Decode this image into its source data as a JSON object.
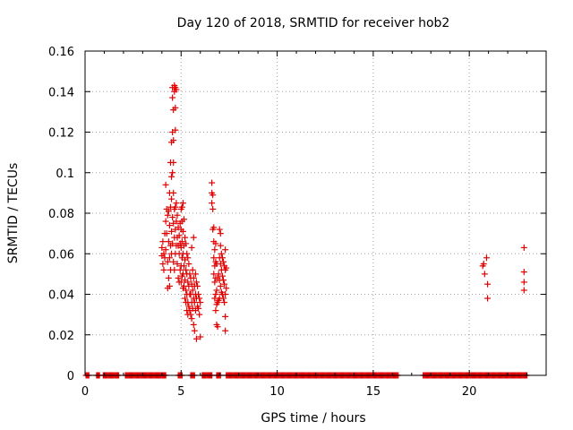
{
  "chart_data": {
    "type": "scatter",
    "title": "Day 120 of 2018, SRMTID for receiver hob2",
    "xlabel": "GPS time / hours",
    "ylabel": "SRMTID / TECUs",
    "xlim": [
      0,
      24
    ],
    "ylim": [
      0,
      0.16
    ],
    "xticks": [
      0,
      5,
      10,
      15,
      20
    ],
    "xtick_labels": [
      "0",
      "5",
      "10",
      "15",
      "20"
    ],
    "yticks": [
      0,
      0.02,
      0.04,
      0.06,
      0.08,
      0.1,
      0.12,
      0.14,
      0.16
    ],
    "ytick_labels": [
      "0",
      "0.02",
      "0.04",
      "0.06",
      "0.08",
      "0.1",
      "0.12",
      "0.14",
      "0.16"
    ],
    "grid": true,
    "marker": "+",
    "color": "#e00000",
    "series": [
      {
        "name": "SRMTID",
        "points": [
          [
            4.0,
            0.059
          ],
          [
            4.0,
            0.063
          ],
          [
            4.05,
            0.055
          ],
          [
            4.05,
            0.066
          ],
          [
            4.1,
            0.06
          ],
          [
            4.1,
            0.052
          ],
          [
            4.15,
            0.07
          ],
          [
            4.15,
            0.058
          ],
          [
            4.2,
            0.094
          ],
          [
            4.2,
            0.076
          ],
          [
            4.2,
            0.062
          ],
          [
            4.25,
            0.082
          ],
          [
            4.25,
            0.07
          ],
          [
            4.3,
            0.079
          ],
          [
            4.3,
            0.043
          ],
          [
            4.3,
            0.056
          ],
          [
            4.35,
            0.081
          ],
          [
            4.35,
            0.066
          ],
          [
            4.35,
            0.048
          ],
          [
            4.4,
            0.09
          ],
          [
            4.4,
            0.074
          ],
          [
            4.4,
            0.058
          ],
          [
            4.4,
            0.044
          ],
          [
            4.45,
            0.105
          ],
          [
            4.45,
            0.083
          ],
          [
            4.45,
            0.064
          ],
          [
            4.45,
            0.052
          ],
          [
            4.5,
            0.115
          ],
          [
            4.5,
            0.098
          ],
          [
            4.5,
            0.087
          ],
          [
            4.5,
            0.071
          ],
          [
            4.5,
            0.06
          ],
          [
            4.55,
            0.142
          ],
          [
            4.55,
            0.137
          ],
          [
            4.55,
            0.12
          ],
          [
            4.55,
            0.1
          ],
          [
            4.55,
            0.078
          ],
          [
            4.55,
            0.065
          ],
          [
            4.6,
            0.131
          ],
          [
            4.6,
            0.116
          ],
          [
            4.6,
            0.105
          ],
          [
            4.6,
            0.09
          ],
          [
            4.6,
            0.075
          ],
          [
            4.6,
            0.056
          ],
          [
            4.65,
            0.143
          ],
          [
            4.65,
            0.14
          ],
          [
            4.65,
            0.082
          ],
          [
            4.65,
            0.068
          ],
          [
            4.65,
            0.052
          ],
          [
            4.7,
            0.142
          ],
          [
            4.7,
            0.132
          ],
          [
            4.7,
            0.121
          ],
          [
            4.7,
            0.083
          ],
          [
            4.7,
            0.072
          ],
          [
            4.7,
            0.06
          ],
          [
            4.75,
            0.141
          ],
          [
            4.75,
            0.085
          ],
          [
            4.75,
            0.076
          ],
          [
            4.75,
            0.064
          ],
          [
            4.8,
            0.079
          ],
          [
            4.8,
            0.068
          ],
          [
            4.8,
            0.055
          ],
          [
            4.85,
            0.073
          ],
          [
            4.85,
            0.064
          ],
          [
            4.85,
            0.048
          ],
          [
            4.9,
            0.069
          ],
          [
            4.9,
            0.06
          ],
          [
            4.9,
            0.046
          ],
          [
            4.95,
            0.075
          ],
          [
            4.95,
            0.065
          ],
          [
            4.95,
            0.052
          ],
          [
            5.0,
            0.082
          ],
          [
            5.0,
            0.072
          ],
          [
            5.0,
            0.063
          ],
          [
            5.0,
            0.054
          ],
          [
            5.0,
            0.046
          ],
          [
            5.05,
            0.083
          ],
          [
            5.05,
            0.076
          ],
          [
            5.05,
            0.066
          ],
          [
            5.05,
            0.058
          ],
          [
            5.05,
            0.049
          ],
          [
            5.1,
            0.085
          ],
          [
            5.1,
            0.071
          ],
          [
            5.1,
            0.06
          ],
          [
            5.1,
            0.05
          ],
          [
            5.1,
            0.043
          ],
          [
            5.15,
            0.077
          ],
          [
            5.15,
            0.064
          ],
          [
            5.15,
            0.054
          ],
          [
            5.15,
            0.044
          ],
          [
            5.2,
            0.068
          ],
          [
            5.2,
            0.057
          ],
          [
            5.2,
            0.047
          ],
          [
            5.2,
            0.038
          ],
          [
            5.25,
            0.065
          ],
          [
            5.25,
            0.052
          ],
          [
            5.25,
            0.042
          ],
          [
            5.25,
            0.036
          ],
          [
            5.3,
            0.06
          ],
          [
            5.3,
            0.05
          ],
          [
            5.3,
            0.04
          ],
          [
            5.3,
            0.032
          ],
          [
            5.35,
            0.058
          ],
          [
            5.35,
            0.046
          ],
          [
            5.35,
            0.036
          ],
          [
            5.35,
            0.03
          ],
          [
            5.4,
            0.055
          ],
          [
            5.4,
            0.044
          ],
          [
            5.4,
            0.034
          ],
          [
            5.45,
            0.05
          ],
          [
            5.45,
            0.04
          ],
          [
            5.45,
            0.032
          ],
          [
            5.5,
            0.048
          ],
          [
            5.5,
            0.04
          ],
          [
            5.5,
            0.03
          ],
          [
            5.55,
            0.063
          ],
          [
            5.55,
            0.045
          ],
          [
            5.55,
            0.036
          ],
          [
            5.55,
            0.028
          ],
          [
            5.6,
            0.052
          ],
          [
            5.6,
            0.042
          ],
          [
            5.6,
            0.033
          ],
          [
            5.65,
            0.068
          ],
          [
            5.65,
            0.048
          ],
          [
            5.65,
            0.038
          ],
          [
            5.65,
            0.025
          ],
          [
            5.7,
            0.044
          ],
          [
            5.7,
            0.036
          ],
          [
            5.7,
            0.022
          ],
          [
            5.75,
            0.05
          ],
          [
            5.75,
            0.04
          ],
          [
            5.75,
            0.032
          ],
          [
            5.8,
            0.046
          ],
          [
            5.8,
            0.038
          ],
          [
            5.8,
            0.018
          ],
          [
            5.85,
            0.044
          ],
          [
            5.85,
            0.034
          ],
          [
            5.9,
            0.04
          ],
          [
            5.9,
            0.033
          ],
          [
            5.95,
            0.038
          ],
          [
            5.95,
            0.03
          ],
          [
            6.0,
            0.036
          ],
          [
            6.0,
            0.019
          ],
          [
            6.6,
            0.095
          ],
          [
            6.6,
            0.09
          ],
          [
            6.6,
            0.085
          ],
          [
            6.65,
            0.089
          ],
          [
            6.65,
            0.082
          ],
          [
            6.65,
            0.072
          ],
          [
            6.7,
            0.073
          ],
          [
            6.7,
            0.066
          ],
          [
            6.7,
            0.058
          ],
          [
            6.7,
            0.05
          ],
          [
            6.75,
            0.062
          ],
          [
            6.75,
            0.054
          ],
          [
            6.75,
            0.046
          ],
          [
            6.75,
            0.038
          ],
          [
            6.8,
            0.065
          ],
          [
            6.8,
            0.056
          ],
          [
            6.8,
            0.048
          ],
          [
            6.8,
            0.04
          ],
          [
            6.8,
            0.032
          ],
          [
            6.85,
            0.055
          ],
          [
            6.85,
            0.042
          ],
          [
            6.85,
            0.035
          ],
          [
            6.85,
            0.025
          ],
          [
            6.9,
            0.048
          ],
          [
            6.9,
            0.036
          ],
          [
            6.9,
            0.024
          ],
          [
            6.95,
            0.05
          ],
          [
            6.95,
            0.037
          ],
          [
            7.0,
            0.072
          ],
          [
            7.0,
            0.058
          ],
          [
            7.0,
            0.047
          ],
          [
            7.0,
            0.038
          ],
          [
            7.05,
            0.07
          ],
          [
            7.05,
            0.064
          ],
          [
            7.05,
            0.055
          ],
          [
            7.05,
            0.044
          ],
          [
            7.1,
            0.06
          ],
          [
            7.1,
            0.052
          ],
          [
            7.1,
            0.041
          ],
          [
            7.15,
            0.058
          ],
          [
            7.15,
            0.049
          ],
          [
            7.15,
            0.04
          ],
          [
            7.2,
            0.056
          ],
          [
            7.2,
            0.047
          ],
          [
            7.2,
            0.038
          ],
          [
            7.25,
            0.054
          ],
          [
            7.25,
            0.045
          ],
          [
            7.25,
            0.036
          ],
          [
            7.3,
            0.062
          ],
          [
            7.3,
            0.052
          ],
          [
            7.3,
            0.04
          ],
          [
            7.3,
            0.029
          ],
          [
            7.3,
            0.022
          ],
          [
            7.35,
            0.053
          ],
          [
            7.35,
            0.043
          ],
          [
            20.7,
            0.054
          ],
          [
            20.75,
            0.055
          ],
          [
            20.8,
            0.05
          ],
          [
            20.9,
            0.058
          ],
          [
            20.95,
            0.045
          ],
          [
            20.95,
            0.038
          ],
          [
            22.85,
            0.063
          ],
          [
            22.85,
            0.051
          ],
          [
            22.85,
            0.046
          ],
          [
            22.85,
            0.042
          ]
        ],
        "zero_ranges": [
          [
            0.05,
            0.2
          ],
          [
            0.6,
            0.75
          ],
          [
            0.95,
            1.75
          ],
          [
            2.1,
            4.2
          ],
          [
            4.85,
            5.05
          ],
          [
            5.5,
            5.7
          ],
          [
            6.1,
            6.6
          ],
          [
            6.85,
            7.05
          ],
          [
            7.35,
            16.3
          ],
          [
            17.6,
            23.0
          ]
        ]
      }
    ]
  }
}
